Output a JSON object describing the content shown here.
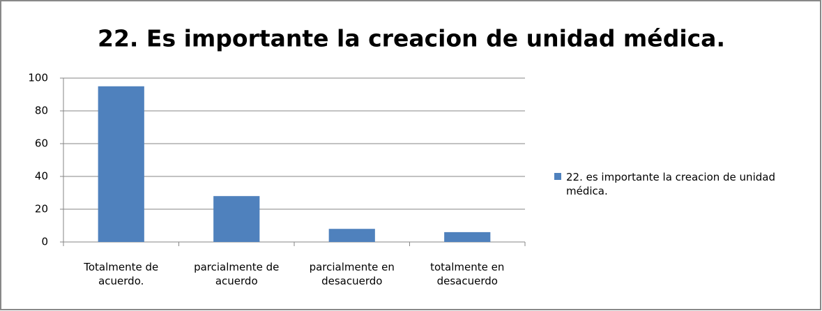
{
  "chart_data": {
    "type": "bar",
    "title": "22. Es importante la creacion de unidad médica.",
    "categories": [
      "Totalmente de acuerdo.",
      "parcialmente de acuerdo",
      "parcialmente en desacuerdo",
      "totalmente en desacuerdo"
    ],
    "series": [
      {
        "name": "22. es importante la creacion de unidad médica.",
        "color": "#4f81bd",
        "values": [
          95,
          28,
          8,
          6
        ]
      }
    ],
    "ylim": [
      0,
      100
    ],
    "yticks": [
      0,
      20,
      40,
      60,
      80,
      100
    ],
    "grid": true,
    "legend": "right"
  }
}
